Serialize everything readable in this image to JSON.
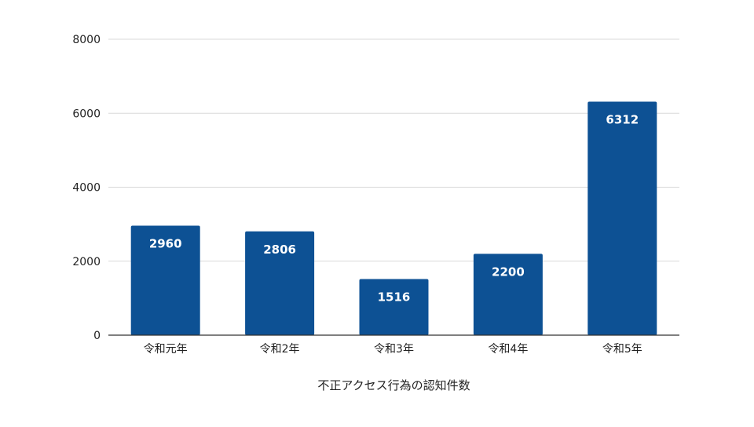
{
  "chart_data": {
    "type": "bar",
    "categories": [
      "令和元年",
      "令和2年",
      "令和3年",
      "令和4年",
      "令和5年"
    ],
    "values": [
      2960,
      2806,
      1516,
      2200,
      6312
    ],
    "data_labels": [
      "2960",
      "2806",
      "1516",
      "2200",
      "6312"
    ],
    "title": "",
    "xlabel": "不正アクセス行為の認知件数",
    "ylabel": "",
    "ylim": [
      0,
      8000
    ],
    "yticks": [
      0,
      2000,
      4000,
      6000,
      8000
    ],
    "ytick_labels": [
      "0",
      "2000",
      "4000",
      "6000",
      "8000"
    ],
    "grid": true,
    "legend": "none",
    "bar_color": "#0d5194"
  }
}
